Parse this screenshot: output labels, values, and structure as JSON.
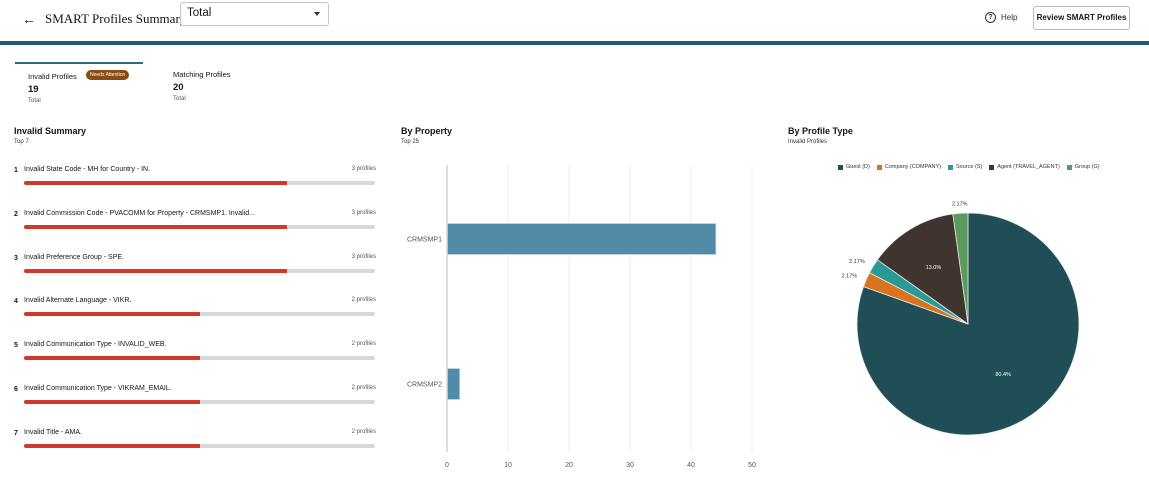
{
  "header": {
    "back_icon": "←",
    "title": "SMART Profiles Summary",
    "filter_select": {
      "value": "Total"
    },
    "help": {
      "icon": "?",
      "label": "Help"
    },
    "review_button": "Review SMART Profiles"
  },
  "tabs": [
    {
      "label": "Invalid Profiles",
      "badge": "Needs Attention",
      "count": "19",
      "sub": "Total",
      "active": true
    },
    {
      "label": "Matching Profiles",
      "count": "20",
      "sub": "Total",
      "active": false
    }
  ],
  "invalid_summary": {
    "title": "Invalid Summary",
    "subtitle": "Top 7",
    "max": 4,
    "bar_color": "#d3392a",
    "items": [
      {
        "num": "1",
        "label": "Invalid State Code - MH for Country - IN.",
        "count": "3 profiles",
        "value": 3
      },
      {
        "num": "2",
        "label": "Invalid Commission Code - PVACOMM for Property - CRMSMP1. Invalid...",
        "count": "3 profiles",
        "value": 3
      },
      {
        "num": "3",
        "label": "Invalid Preference Group - SPE.",
        "count": "3 profiles",
        "value": 3
      },
      {
        "num": "4",
        "label": "Invalid Alternate Language - VIKR.",
        "count": "2 profiles",
        "value": 2
      },
      {
        "num": "5",
        "label": "Invalid Communication Type - INVALID_WEB.",
        "count": "2 profiles",
        "value": 2
      },
      {
        "num": "6",
        "label": "Invalid Communication Type - VIKRAM_EMAIL.",
        "count": "2 profiles",
        "value": 2
      },
      {
        "num": "7",
        "label": "Invalid Title - AMA.",
        "count": "2 profiles",
        "value": 2
      }
    ]
  },
  "by_property": {
    "title": "By Property",
    "subtitle": "Top 25"
  },
  "by_profile_type": {
    "title": "By Profile Type",
    "subtitle": "Invalid Profiles"
  },
  "chart_data": [
    {
      "type": "bar",
      "orientation": "horizontal",
      "title": "By Property",
      "subtitle": "Top 25",
      "categories": [
        "CRMSMP1",
        "CRMSMP2"
      ],
      "values": [
        44,
        2
      ],
      "xlabel": "",
      "ylabel": "",
      "xlim": [
        0,
        50
      ],
      "xticks": [
        0,
        10,
        20,
        30,
        40,
        50
      ],
      "grid": true,
      "color": "#528ba8"
    },
    {
      "type": "pie",
      "title": "By Profile Type",
      "subtitle": "Invalid Profiles",
      "legend_position": "top",
      "series": [
        {
          "name": "Guest (D)",
          "value": 80.4,
          "label": "80.4%",
          "color": "#1f4e56"
        },
        {
          "name": "Company (COMPANY)",
          "value": 2.17,
          "label": "2.17%",
          "color": "#d8731f"
        },
        {
          "name": "Source (S)",
          "value": 2.17,
          "label": "2.17%",
          "color": "#2a9a95"
        },
        {
          "name": "Agent (TRAVEL_AGENT)",
          "value": 13.0,
          "label": "13.0%",
          "color": "#40352e"
        },
        {
          "name": "Group (G)",
          "value": 2.17,
          "label": "2.17%",
          "color": "#5a9a5c"
        }
      ]
    }
  ]
}
